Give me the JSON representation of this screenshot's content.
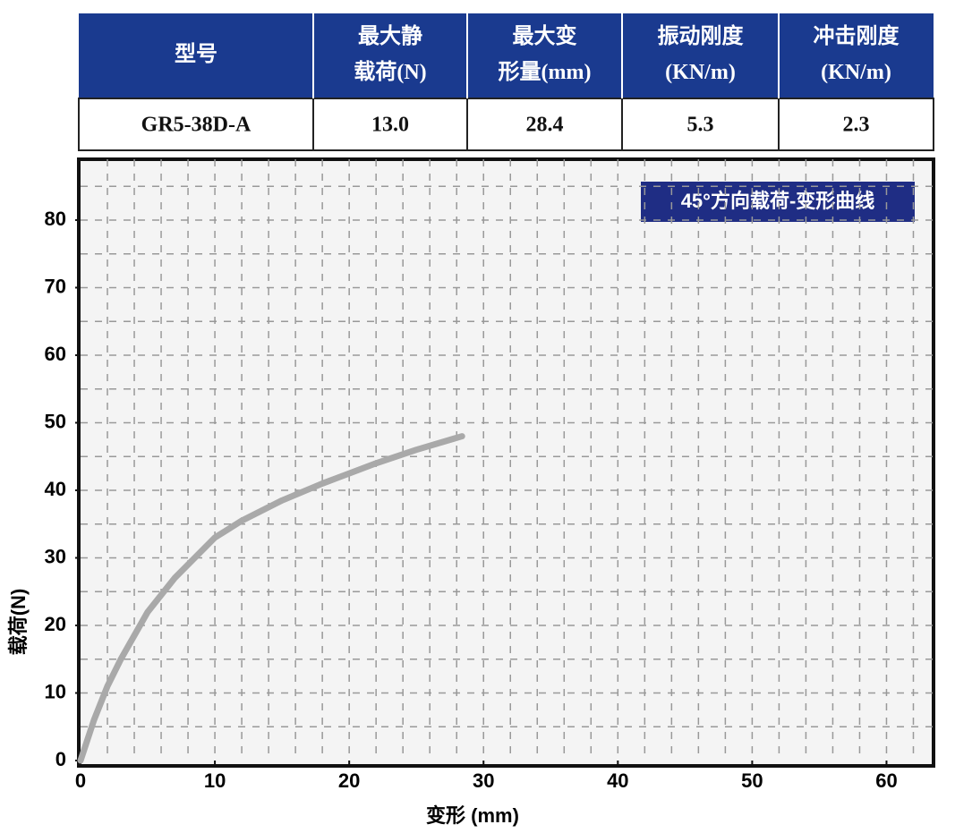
{
  "table": {
    "header": [
      [
        "型号"
      ],
      [
        "最大静",
        "载荷(N)"
      ],
      [
        "最大变",
        "形量(mm)"
      ],
      [
        "振动刚度",
        "(KN/m)"
      ],
      [
        "冲击刚度",
        "(KN/m)"
      ]
    ],
    "rows": [
      [
        "GR5-38D-A",
        "13.0",
        "28.4",
        "5.3",
        "2.3"
      ]
    ]
  },
  "chart_data": {
    "type": "line",
    "annotation": "45°方向载荷-变形曲线",
    "x_label": "变形 (mm)",
    "y_label": "载荷(N)",
    "x": [
      0,
      1,
      2,
      3,
      5,
      7,
      10,
      12,
      15,
      18,
      20,
      22,
      25,
      28.4
    ],
    "series": [
      {
        "color": "#a9a9a9",
        "values": [
          0,
          6,
          11,
          15,
          22,
          27,
          33,
          35.5,
          38.5,
          41,
          42.5,
          44,
          46,
          48
        ]
      }
    ],
    "xlim": [
      0,
      63.5
    ],
    "ylim": [
      0,
      89
    ],
    "xticks": [
      0,
      10,
      20,
      30,
      40,
      50,
      60
    ],
    "yticks": [
      0,
      10,
      20,
      30,
      40,
      50,
      60,
      70,
      80
    ],
    "grid": true
  }
}
